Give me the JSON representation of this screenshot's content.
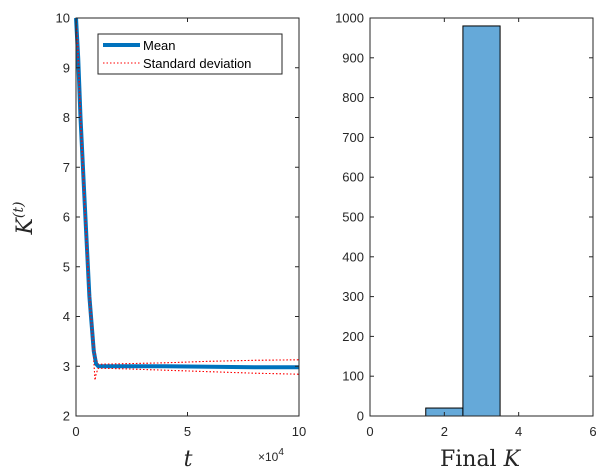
{
  "chart_data": [
    {
      "type": "line",
      "xlabel": "t",
      "ylabel": "K^(t)",
      "x_multiplier": "×10",
      "x_multiplier_exp": "4",
      "xlim": [
        0,
        10
      ],
      "ylim": [
        2,
        10
      ],
      "xticks": [
        0,
        5,
        10
      ],
      "yticks": [
        2,
        3,
        4,
        5,
        6,
        7,
        8,
        9,
        10
      ],
      "grid": false,
      "legend_position": "top-right",
      "mean_color": "#0072BD",
      "std_color": "#FF0000",
      "legend": [
        "Mean",
        "Standard deviation"
      ],
      "series": [
        {
          "name": "Mean",
          "style": "solid-thick",
          "x": [
            0,
            0.1,
            0.2,
            0.4,
            0.6,
            0.8,
            0.9,
            1.0,
            2,
            4,
            6,
            8,
            10
          ],
          "y": [
            10,
            9.2,
            8.0,
            6.2,
            4.4,
            3.3,
            3.05,
            3.0,
            3.0,
            3.0,
            2.99,
            2.98,
            2.98
          ]
        },
        {
          "name": "Standard deviation",
          "style": "dotted-upper",
          "x": [
            0,
            0.1,
            0.2,
            0.4,
            0.6,
            0.8,
            0.9,
            1.0,
            2,
            4,
            6,
            8,
            10
          ],
          "y": [
            10,
            9.4,
            8.2,
            6.3,
            4.6,
            3.5,
            3.15,
            3.04,
            3.05,
            3.07,
            3.1,
            3.12,
            3.13
          ]
        },
        {
          "name": "Standard deviation",
          "style": "dotted-lower",
          "x": [
            0,
            0.1,
            0.2,
            0.4,
            0.6,
            0.8,
            0.85,
            0.9,
            1.0,
            2,
            4,
            6,
            8,
            10
          ],
          "y": [
            10,
            9.0,
            7.8,
            6.0,
            4.2,
            3.1,
            2.72,
            2.85,
            2.96,
            2.95,
            2.92,
            2.89,
            2.86,
            2.84
          ]
        }
      ]
    },
    {
      "type": "bar",
      "xlabel": "Final K",
      "xlim": [
        0,
        6
      ],
      "ylim": [
        0,
        1000
      ],
      "xticks": [
        0,
        2,
        4,
        6
      ],
      "yticks": [
        0,
        100,
        200,
        300,
        400,
        500,
        600,
        700,
        800,
        900,
        1000
      ],
      "grid": false,
      "bar_color": "#65A9D9",
      "bars": [
        {
          "left": 1.5,
          "right": 2.5,
          "value": 20
        },
        {
          "left": 2.5,
          "right": 3.5,
          "value": 980
        }
      ]
    }
  ]
}
